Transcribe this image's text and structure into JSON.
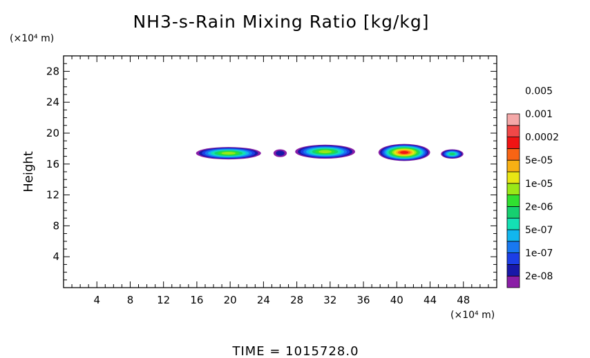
{
  "chart_data": {
    "type": "heatmap",
    "title": "NH3-s-Rain Mixing Ratio [kg/kg]",
    "ylabel": "Height",
    "xlabel": "",
    "x_unit": "(×10⁴ m)",
    "y_unit": "(×10⁴ m)",
    "xlim": [
      0,
      52
    ],
    "ylim": [
      0,
      30
    ],
    "x_ticks": [
      4,
      8,
      12,
      16,
      20,
      24,
      28,
      32,
      36,
      40,
      44,
      48
    ],
    "x_tick_labels": [
      "4",
      "8",
      "12",
      "16",
      "20",
      "24",
      "28",
      "32",
      "36",
      "40",
      "44",
      "48"
    ],
    "y_ticks": [
      4,
      8,
      12,
      16,
      20,
      24,
      28
    ],
    "y_tick_labels": [
      "4",
      "8",
      "12",
      "16",
      "20",
      "24",
      "28"
    ],
    "time_label": "TIME  =  1015728.0",
    "colorbar": {
      "colors": [
        "#8a1ea6",
        "#1818a8",
        "#1c3ee6",
        "#1878f0",
        "#12b6ee",
        "#14e0b4",
        "#16d070",
        "#30e030",
        "#9ae818",
        "#e8e614",
        "#f8b014",
        "#f86414",
        "#f01414",
        "#f04848",
        "#f4a8a8"
      ],
      "labels": [
        "2e-08",
        "1e-07",
        "5e-07",
        "2e-06",
        "1e-05",
        "5e-05",
        "0.0002",
        "0.001",
        "0.005"
      ]
    },
    "cells": [
      {
        "x": [
          15.9,
          23.7
        ],
        "y": [
          16.6,
          18.2
        ],
        "max_level": 9
      },
      {
        "x": [
          25.2,
          26.8
        ],
        "y": [
          16.9,
          17.9
        ],
        "max_level": 2
      },
      {
        "x": [
          27.8,
          35.0
        ],
        "y": [
          16.7,
          18.5
        ],
        "max_level": 9
      },
      {
        "x": [
          37.8,
          44.0
        ],
        "y": [
          16.4,
          18.6
        ],
        "max_level": 13
      },
      {
        "x": [
          45.3,
          48.0
        ],
        "y": [
          16.7,
          17.9
        ],
        "max_level": 7
      }
    ]
  }
}
